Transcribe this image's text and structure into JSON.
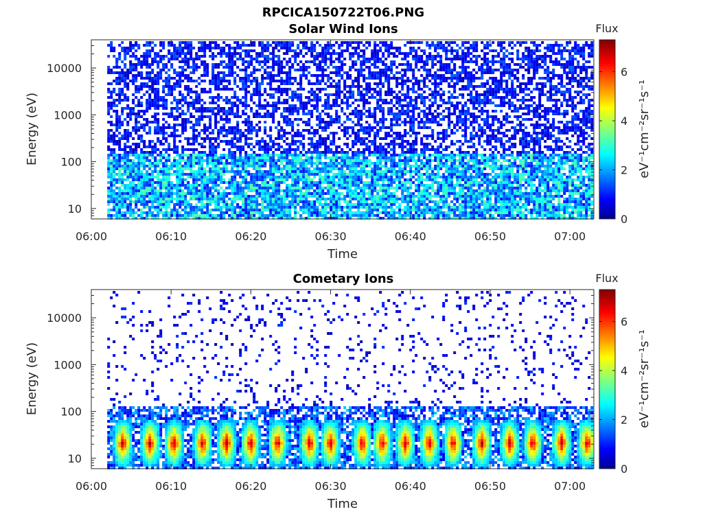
{
  "figure": {
    "filename": "RPCICA150722T06.PNG"
  },
  "chart_data": [
    {
      "type": "heatmap",
      "title": "Solar Wind Ions",
      "xlabel": "Time",
      "ylabel": "Energy (eV)",
      "x_ticks": [
        "06:00",
        "06:10",
        "06:20",
        "06:30",
        "06:40",
        "06:50",
        "07:00"
      ],
      "xlim": [
        "06:00",
        "07:03"
      ],
      "data_start": "06:02",
      "y_scale": "log",
      "y_ticks": [
        10,
        100,
        1000,
        10000
      ],
      "ylim": [
        6,
        40000
      ],
      "colorbar": {
        "title": "Flux",
        "label": "eV⁻¹cm⁻²sr⁻¹s⁻¹",
        "ticks": [
          0,
          2,
          4,
          6
        ],
        "range": [
          0,
          7.3
        ],
        "colormap": "jet"
      },
      "flux_profile": "Sparse low-level flux (0.5–1.5) across all energies, enhanced (2–3.5) below 150 eV"
    },
    {
      "type": "heatmap",
      "title": "Cometary Ions",
      "xlabel": "Time",
      "ylabel": "Energy (eV)",
      "x_ticks": [
        "06:00",
        "06:10",
        "06:20",
        "06:30",
        "06:40",
        "06:50",
        "07:00"
      ],
      "xlim": [
        "06:00",
        "07:03"
      ],
      "data_start": "06:02",
      "y_scale": "log",
      "y_ticks": [
        10,
        100,
        1000,
        10000
      ],
      "ylim": [
        6,
        40000
      ],
      "colorbar": {
        "title": "Flux",
        "label": "eV⁻¹cm⁻²sr⁻¹s⁻¹",
        "ticks": [
          0,
          2,
          4,
          6
        ],
        "range": [
          0,
          7.3
        ],
        "colormap": "jet"
      },
      "burst_minutes": [
        3.8,
        7.2,
        10.2,
        13.8,
        16.8,
        19.8,
        23.2,
        27.2,
        29.8,
        33.8,
        36.3,
        39.2,
        42.2,
        45.2,
        48.8,
        52.3,
        55.2,
        58.8,
        62.0
      ],
      "burst_peak_energy": [
        15,
        40
      ],
      "burst_peak_flux": [
        4.5,
        6.8
      ],
      "flux_profile": "Periodic bursts peaking near 15–40 eV, sparse scattered flux above 150 eV"
    }
  ]
}
